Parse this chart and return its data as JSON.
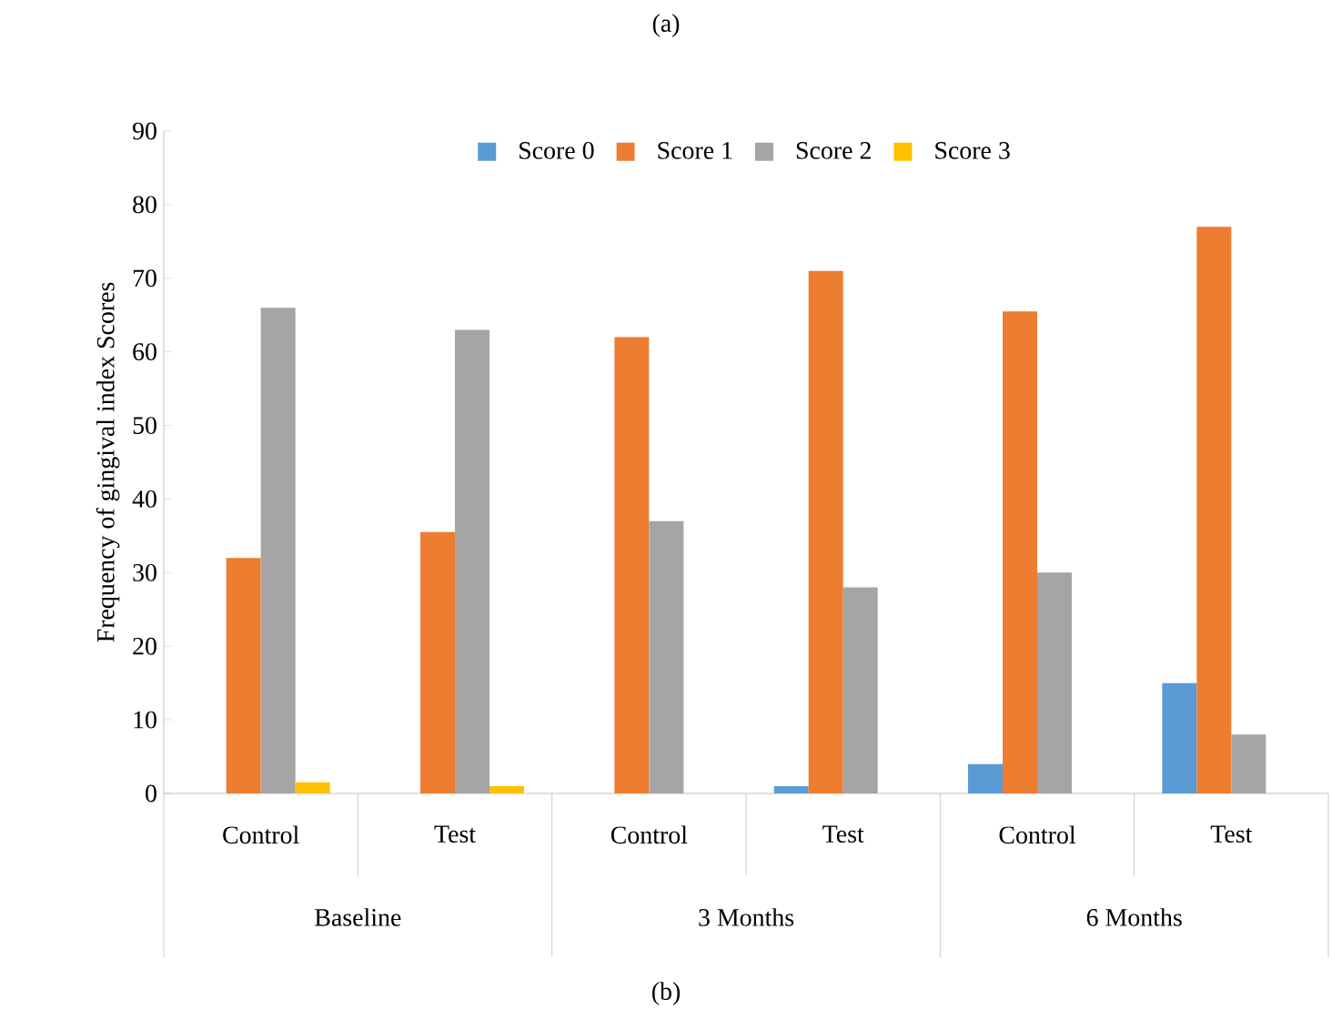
{
  "chart_data": {
    "type": "bar",
    "title": "(a)",
    "ylabel": "Frequency of gingival index Scores",
    "categories": [
      "Control",
      "Test",
      "Control",
      "Test",
      "Control",
      "Test"
    ],
    "series": [
      {
        "name": "Score 0",
        "color": "#5b9bd5",
        "values": [
          0,
          0,
          0,
          1,
          4,
          15
        ]
      },
      {
        "name": "Score 1",
        "color": "#ed7d31",
        "values": [
          32,
          35.5,
          62,
          71,
          65.5,
          77
        ]
      },
      {
        "name": "Score 2",
        "color": "#a5a5a5",
        "values": [
          66,
          63,
          37,
          28,
          30,
          8
        ]
      },
      {
        "name": "Score 3",
        "color": "#ffc000",
        "values": [
          1.5,
          1,
          0,
          0,
          0,
          0
        ]
      }
    ],
    "annotations": [
      "Baseline",
      "3 Months",
      "6 Months",
      "(b)"
    ],
    "ylim": [
      0,
      90
    ],
    "yticks": [
      0,
      10,
      20,
      30,
      40,
      50,
      60,
      70,
      80,
      90
    ],
    "legend": "top",
    "grid": false
  }
}
